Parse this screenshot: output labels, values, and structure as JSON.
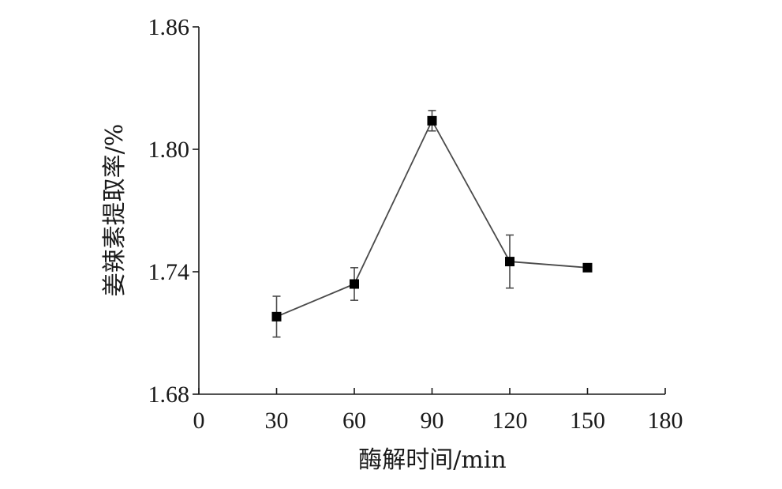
{
  "chart_data": {
    "type": "line",
    "title": "",
    "xlabel": "酶解时间/min",
    "ylabel": "姜辣素提取率/%",
    "xlim": [
      0,
      180
    ],
    "ylim": [
      1.68,
      1.86
    ],
    "x_ticks": [
      "0",
      "30",
      "60",
      "90",
      "120",
      "150",
      "180"
    ],
    "y_ticks": [
      "1.68",
      "1.74",
      "1.80",
      "1.86"
    ],
    "grid": false,
    "series": [
      {
        "x": [
          30,
          60,
          90,
          120,
          150
        ],
        "y": [
          1.718,
          1.734,
          1.814,
          1.745,
          1.742
        ],
        "err": [
          0.01,
          0.008,
          0.005,
          0.013,
          0
        ],
        "marker": "square",
        "color": "#000000"
      }
    ]
  }
}
